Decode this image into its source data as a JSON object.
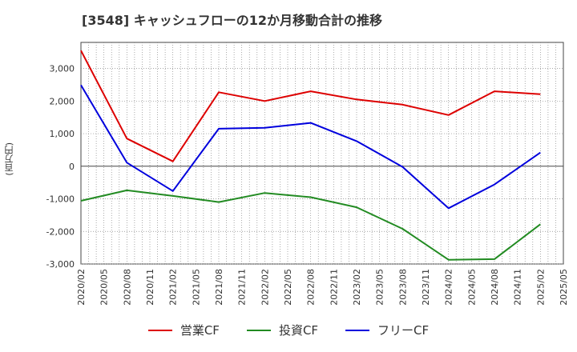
{
  "chart_data": {
    "type": "line",
    "title": "[3548]  キャッシュフローの12か月移動合計の推移",
    "ylabel": "(百万円)",
    "xlabel": "",
    "ylim": [
      -3000,
      3800
    ],
    "yticks": [
      -3000,
      -2000,
      -1000,
      0,
      1000,
      2000,
      3000
    ],
    "ytick_labels": [
      "-3,000",
      "-2,000",
      "-1,000",
      "0",
      "1,000",
      "2,000",
      "3,000"
    ],
    "xlim": [
      "2020/02",
      "2025/05"
    ],
    "x_tick_labels": [
      "2020/02",
      "2020/05",
      "2020/08",
      "2020/11",
      "2021/02",
      "2021/05",
      "2021/08",
      "2021/11",
      "2022/02",
      "2022/05",
      "2022/08",
      "2022/11",
      "2023/02",
      "2023/05",
      "2023/08",
      "2023/11",
      "2024/02",
      "2024/05",
      "2024/08",
      "2024/11",
      "2025/02",
      "2025/05"
    ],
    "x": [
      "2020/02",
      "2020/08",
      "2021/02",
      "2021/08",
      "2022/02",
      "2022/08",
      "2023/02",
      "2023/08",
      "2024/02",
      "2024/08",
      "2025/02"
    ],
    "series": [
      {
        "name": "営業CF",
        "color": "#dd0000",
        "values": [
          3550,
          850,
          150,
          2270,
          2000,
          2300,
          2050,
          1890,
          1570,
          2300,
          2210
        ]
      },
      {
        "name": "投資CF",
        "color": "#228b22",
        "values": [
          -1060,
          -740,
          -910,
          -1100,
          -820,
          -950,
          -1260,
          -1920,
          -2870,
          -2850,
          -1780
        ]
      },
      {
        "name": "フリーCF",
        "color": "#0000dd",
        "values": [
          2490,
          110,
          -760,
          1150,
          1180,
          1330,
          770,
          -20,
          -1290,
          -560,
          420
        ]
      }
    ]
  }
}
